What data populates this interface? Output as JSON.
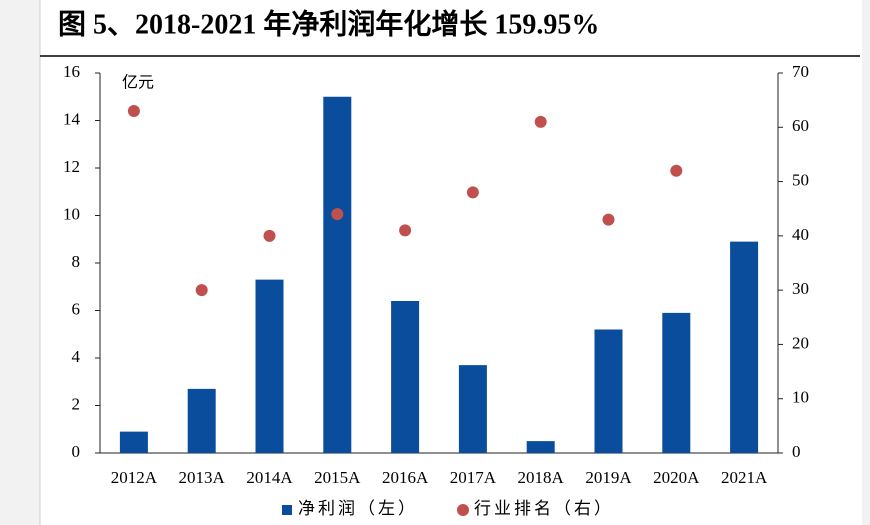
{
  "chart_data": {
    "type": "bar",
    "title": "图 5、2018-2021 年净利润年化增长 159.95%",
    "y_unit": "亿元",
    "categories": [
      "2012A",
      "2013A",
      "2014A",
      "2015A",
      "2016A",
      "2017A",
      "2018A",
      "2019A",
      "2020A",
      "2021A"
    ],
    "series": [
      {
        "name": "净利润（左）",
        "type": "bar",
        "color": "#0a4d9c",
        "values": [
          0.9,
          2.7,
          7.3,
          15.0,
          6.4,
          3.7,
          0.5,
          5.2,
          5.9,
          8.9
        ]
      },
      {
        "name": "行业排名（右）",
        "type": "scatter",
        "axis": "y2",
        "color": "#c0504d",
        "values": [
          63,
          30,
          40,
          44,
          41,
          48,
          61,
          43,
          52,
          null
        ]
      }
    ],
    "ylim": [
      0,
      16
    ],
    "yticks": [
      0,
      2,
      4,
      6,
      8,
      10,
      12,
      14,
      16
    ],
    "y2lim": [
      0,
      70
    ],
    "y2ticks": [
      0,
      10,
      20,
      30,
      40,
      50,
      60,
      70
    ],
    "legend": "bottom"
  }
}
